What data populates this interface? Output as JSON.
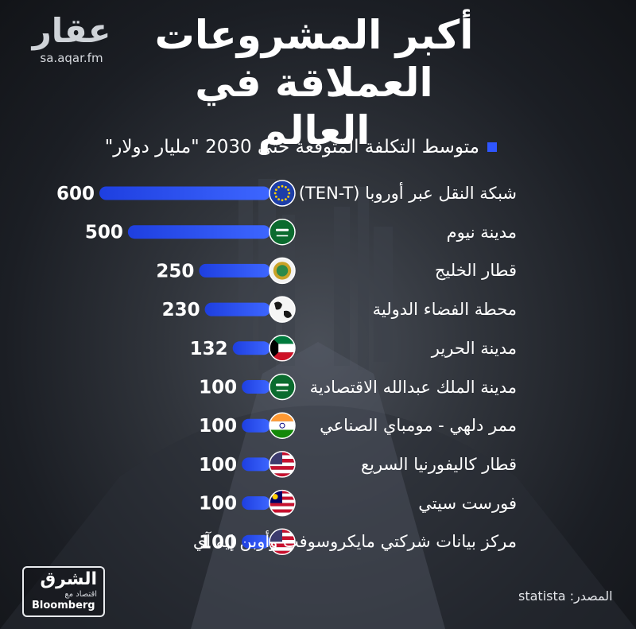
{
  "watermark": {
    "word": "عقار",
    "url": "sa.aqar.fm"
  },
  "title_lines": [
    "أكبر المشروعات",
    "العملاقة في العالم"
  ],
  "legend": {
    "label": "متوسط التكلفة المتوقعة حتى 2030 \"مليار دولار\"",
    "color": "#2f56ff"
  },
  "source": "المصدر: statista",
  "brand": {
    "arabic": "الشرق",
    "sub": "اقتصاد مع",
    "english": "Bloomberg"
  },
  "chart_data": {
    "type": "bar",
    "orientation": "horizontal",
    "bar_color": "#2f56ff",
    "categories": [
      "شبكة النقل عبر أوروبا (TEN-T)",
      "مدينة نيوم",
      "قطار الخليج",
      "محطة الفضاء الدولية",
      "مدينة الحرير",
      "مدينة الملك عبدالله الاقتصادية",
      "ممر دلهي - مومباي الصناعي",
      "قطار كاليفورنيا السريع",
      "فورست سيتي",
      "مركز بيانات شركتي مايكروسوفت وأوبن إيه آي"
    ],
    "values": [
      600,
      500,
      250,
      230,
      132,
      100,
      100,
      100,
      100,
      100
    ],
    "value_labels": [
      "600",
      "500",
      "250",
      "230",
      "132",
      "100",
      "100",
      "100",
      "100",
      "100"
    ],
    "icons": [
      "eu-flag-icon",
      "saudi-flag-icon",
      "gcc-emblem-icon",
      "globe-icon",
      "kuwait-flag-icon",
      "saudi-flag-icon",
      "india-flag-icon",
      "usa-flag-icon",
      "malaysia-flag-icon",
      "usa-flag-icon"
    ]
  }
}
